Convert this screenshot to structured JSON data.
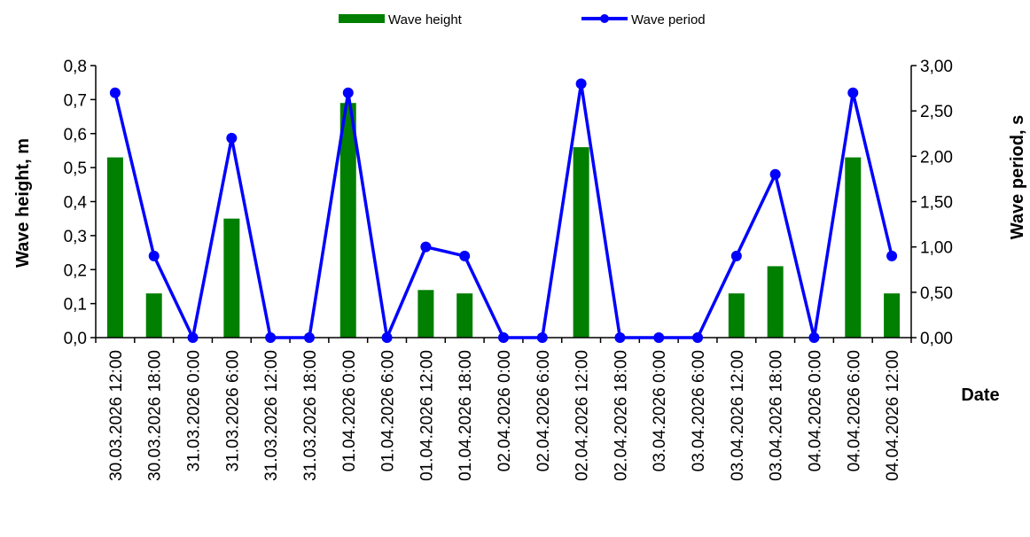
{
  "chart_data": {
    "type": "bar+line",
    "categories": [
      "30.03.2026 12:00",
      "30.03.2026 18:00",
      "31.03.2026 0:00",
      "31.03.2026 6:00",
      "31.03.2026 12:00",
      "31.03.2026 18:00",
      "01.04.2026 0:00",
      "01.04.2026 6:00",
      "01.04.2026 12:00",
      "01.04.2026 18:00",
      "02.04.2026 0:00",
      "02.04.2026 6:00",
      "02.04.2026 12:00",
      "02.04.2026 18:00",
      "03.04.2026 0:00",
      "03.04.2026 6:00",
      "03.04.2026 12:00",
      "03.04.2026 18:00",
      "04.04.2026 0:00",
      "04.04.2026 6:00",
      "04.04.2026 12:00"
    ],
    "series": [
      {
        "name": "Wave height",
        "type": "bar",
        "axis": "left",
        "color": "#007f00",
        "values": [
          0.53,
          0.13,
          0,
          0.35,
          0,
          0,
          0.69,
          0,
          0.14,
          0.13,
          0,
          0,
          0.56,
          0,
          0,
          0,
          0.13,
          0.21,
          0,
          0.53,
          0.13
        ]
      },
      {
        "name": "Wave period",
        "type": "line",
        "axis": "right",
        "color": "#0000ff",
        "values": [
          2.7,
          0.9,
          0,
          2.2,
          0,
          0,
          2.7,
          0,
          1.0,
          0.9,
          0,
          0,
          2.8,
          0,
          0,
          0,
          0.9,
          1.8,
          0,
          2.7,
          0.9
        ]
      }
    ],
    "ylabel": "Wave height, m",
    "ylabel_right": "Wave period, s",
    "xlabel": "Date",
    "ylim": [
      0,
      0.8
    ],
    "ylim_right": [
      0,
      3.0
    ],
    "yticks": [
      "0,0",
      "0,1",
      "0,2",
      "0,3",
      "0,4",
      "0,5",
      "0,6",
      "0,7",
      "0,8"
    ],
    "yticks_right": [
      "0,00",
      "0,50",
      "1,00",
      "1,50",
      "2,00",
      "2,50",
      "3,00"
    ],
    "legend_position": "top-center",
    "grid": false
  }
}
